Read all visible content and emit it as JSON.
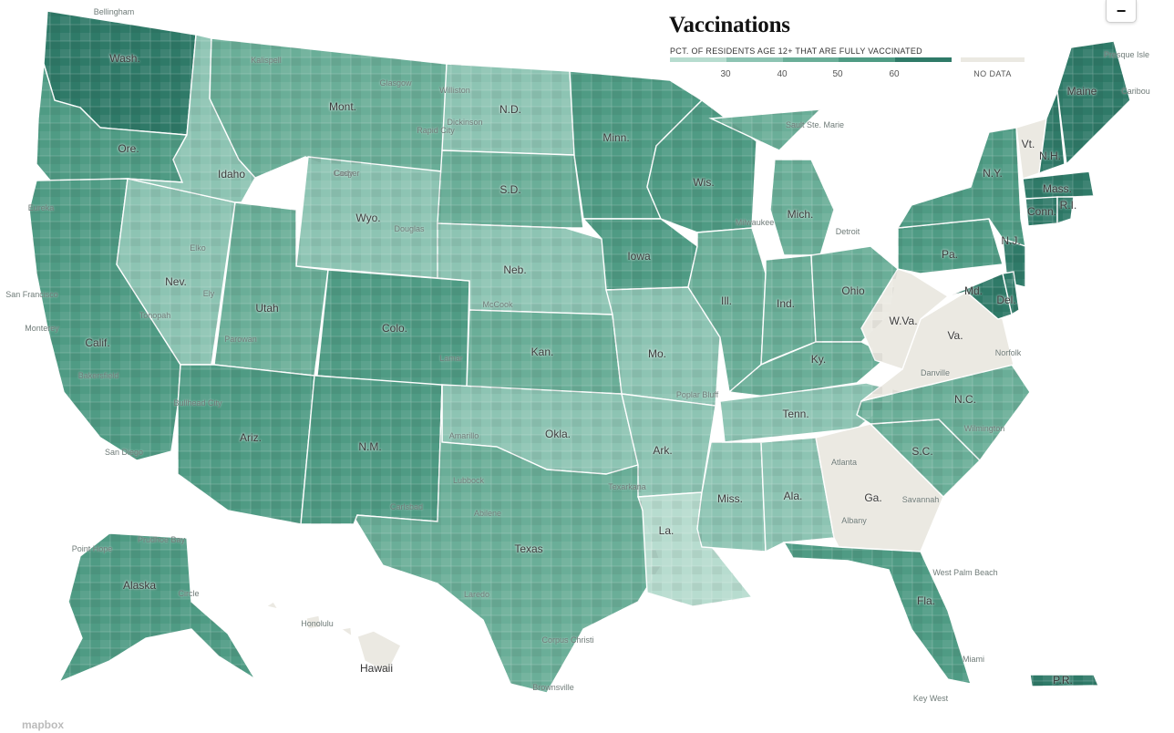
{
  "legend": {
    "title": "Vaccinations",
    "subtitle": "PCT. OF RESIDENTS AGE 12+ THAT ARE FULLY VACCINATED",
    "ticks": [
      "30",
      "40",
      "50",
      "60"
    ],
    "colors": [
      "#b7dccf",
      "#8dc4b3",
      "#6aae98",
      "#4f9b84",
      "#2f7a68"
    ],
    "nodata_color": "#ebe9e2",
    "nodata_label": "NO DATA"
  },
  "controls": {
    "zoom_out_label": "−"
  },
  "attribution": {
    "logo": "mapbox"
  },
  "states": [
    {
      "key": "WA",
      "label": "Wash.",
      "vax_level": 4,
      "nodata": false
    },
    {
      "key": "OR",
      "label": "Ore.",
      "vax_level": 3,
      "nodata": false
    },
    {
      "key": "CA",
      "label": "Calif.",
      "vax_level": 3,
      "nodata": false
    },
    {
      "key": "NV",
      "label": "Nev.",
      "vax_level": 1,
      "nodata": false
    },
    {
      "key": "ID",
      "label": "Idaho",
      "vax_level": 1,
      "nodata": false
    },
    {
      "key": "MT",
      "label": "Mont.",
      "vax_level": 2,
      "nodata": false
    },
    {
      "key": "WY",
      "label": "Wyo.",
      "vax_level": 1,
      "nodata": false
    },
    {
      "key": "UT",
      "label": "Utah",
      "vax_level": 2,
      "nodata": false
    },
    {
      "key": "AZ",
      "label": "Ariz.",
      "vax_level": 3,
      "nodata": false
    },
    {
      "key": "CO",
      "label": "Colo.",
      "vax_level": 3,
      "nodata": false
    },
    {
      "key": "NM",
      "label": "N.M.",
      "vax_level": 3,
      "nodata": false
    },
    {
      "key": "ND",
      "label": "N.D.",
      "vax_level": 1,
      "nodata": false
    },
    {
      "key": "SD",
      "label": "S.D.",
      "vax_level": 2,
      "nodata": false
    },
    {
      "key": "NE",
      "label": "Neb.",
      "vax_level": 1,
      "nodata": false
    },
    {
      "key": "KS",
      "label": "Kan.",
      "vax_level": 2,
      "nodata": false
    },
    {
      "key": "OK",
      "label": "Okla.",
      "vax_level": 1,
      "nodata": false
    },
    {
      "key": "TX",
      "label": "Texas",
      "vax_level": 2,
      "nodata": false
    },
    {
      "key": "MN",
      "label": "Minn.",
      "vax_level": 3,
      "nodata": false
    },
    {
      "key": "IA",
      "label": "Iowa",
      "vax_level": 3,
      "nodata": false
    },
    {
      "key": "MO",
      "label": "Mo.",
      "vax_level": 1,
      "nodata": false
    },
    {
      "key": "AR",
      "label": "Ark.",
      "vax_level": 1,
      "nodata": false
    },
    {
      "key": "LA",
      "label": "La.",
      "vax_level": 0,
      "nodata": false
    },
    {
      "key": "WI",
      "label": "Wis.",
      "vax_level": 3,
      "nodata": false
    },
    {
      "key": "IL",
      "label": "Ill.",
      "vax_level": 2,
      "nodata": false
    },
    {
      "key": "MI",
      "label": "Mich.",
      "vax_level": 2,
      "nodata": false
    },
    {
      "key": "IN",
      "label": "Ind.",
      "vax_level": 2,
      "nodata": false
    },
    {
      "key": "OH",
      "label": "Ohio",
      "vax_level": 2,
      "nodata": false
    },
    {
      "key": "KY",
      "label": "Ky.",
      "vax_level": 2,
      "nodata": false
    },
    {
      "key": "TN",
      "label": "Tenn.",
      "vax_level": 1,
      "nodata": false
    },
    {
      "key": "MS",
      "label": "Miss.",
      "vax_level": 1,
      "nodata": false
    },
    {
      "key": "AL",
      "label": "Ala.",
      "vax_level": 1,
      "nodata": false
    },
    {
      "key": "GA",
      "label": "Ga.",
      "vax_level": 0,
      "nodata": true
    },
    {
      "key": "FL",
      "label": "Fla.",
      "vax_level": 3,
      "nodata": false
    },
    {
      "key": "SC",
      "label": "S.C.",
      "vax_level": 2,
      "nodata": false
    },
    {
      "key": "NC",
      "label": "N.C.",
      "vax_level": 2,
      "nodata": false
    },
    {
      "key": "VA",
      "label": "Va.",
      "vax_level": 0,
      "nodata": true
    },
    {
      "key": "WV",
      "label": "W.Va.",
      "vax_level": 0,
      "nodata": true
    },
    {
      "key": "PA",
      "label": "Pa.",
      "vax_level": 3,
      "nodata": false
    },
    {
      "key": "NY",
      "label": "N.Y.",
      "vax_level": 3,
      "nodata": false
    },
    {
      "key": "VT",
      "label": "Vt.",
      "vax_level": 0,
      "nodata": true
    },
    {
      "key": "NH",
      "label": "N.H.",
      "vax_level": 4,
      "nodata": false
    },
    {
      "key": "ME",
      "label": "Maine",
      "vax_level": 4,
      "nodata": false
    },
    {
      "key": "MA",
      "label": "Mass.",
      "vax_level": 4,
      "nodata": false
    },
    {
      "key": "CT",
      "label": "Conn.",
      "vax_level": 4,
      "nodata": false
    },
    {
      "key": "RI",
      "label": "R.I.",
      "vax_level": 4,
      "nodata": false
    },
    {
      "key": "NJ",
      "label": "N.J.",
      "vax_level": 4,
      "nodata": false
    },
    {
      "key": "MD",
      "label": "Md.",
      "vax_level": 4,
      "nodata": false
    },
    {
      "key": "DE",
      "label": "Del.",
      "vax_level": 4,
      "nodata": false
    },
    {
      "key": "AK",
      "label": "Alaska",
      "vax_level": 3,
      "nodata": false
    },
    {
      "key": "HI",
      "label": "Hawaii",
      "vax_level": 0,
      "nodata": true
    },
    {
      "key": "PR",
      "label": "P.R.",
      "vax_level": 4,
      "nodata": false
    }
  ],
  "cities": [
    "Kalispell",
    "Glasgow",
    "Williston",
    "Dickinson",
    "Rapid City",
    "Casper",
    "Douglas",
    "Cody",
    "Elko",
    "Ely",
    "Tonopah",
    "Parowan",
    "Bakersfield",
    "Bullhead City",
    "San Diego",
    "Lamar",
    "McCook",
    "Amarillo",
    "Lubbock",
    "Carlsbad",
    "Abilene",
    "Texarkana",
    "Laredo",
    "Corpus Christi",
    "Brownsville",
    "Sault Ste. Marie",
    "Milwaukee",
    "Detroit",
    "Norfolk",
    "Danville",
    "Wilmington",
    "Atlanta",
    "Savannah",
    "Albany",
    "West Palm Beach",
    "Miami",
    "Key West",
    "Poplar Bluff",
    "Honolulu",
    "Point Hope",
    "Prudhoe Bay",
    "Circle",
    "Bellingham",
    "Eureka",
    "San Francisco",
    "Monterey",
    "Caribou",
    "Presque Isle"
  ]
}
